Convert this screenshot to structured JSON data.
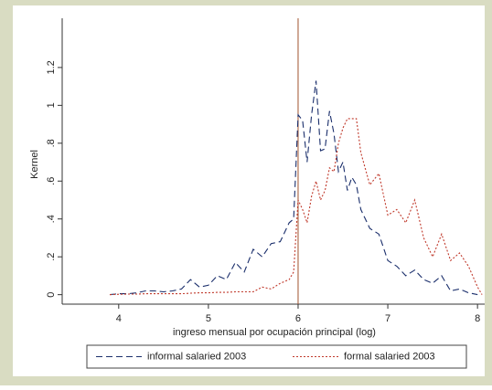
{
  "chart_data": {
    "type": "line",
    "xlabel": "ingreso mensual por ocupación principal (log)",
    "ylabel": "Kernel",
    "x": [
      3.9,
      4.0,
      4.1,
      4.2,
      4.3,
      4.4,
      4.5,
      4.6,
      4.7,
      4.8,
      4.9,
      5.0,
      5.1,
      5.2,
      5.3,
      5.4,
      5.5,
      5.6,
      5.7,
      5.8,
      5.9,
      5.95,
      6.0,
      6.05,
      6.1,
      6.15,
      6.2,
      6.25,
      6.3,
      6.35,
      6.4,
      6.45,
      6.5,
      6.55,
      6.6,
      6.65,
      6.7,
      6.8,
      6.9,
      7.0,
      7.1,
      7.2,
      7.3,
      7.4,
      7.5,
      7.6,
      7.7,
      7.8,
      7.9,
      8.0,
      8.05
    ],
    "series": [
      {
        "name": "informal salaried 2003",
        "color": "#1a2e6b",
        "dash": "dashed",
        "values": [
          0,
          0.005,
          0.005,
          0.01,
          0.02,
          0.02,
          0.015,
          0.02,
          0.03,
          0.08,
          0.04,
          0.05,
          0.1,
          0.08,
          0.17,
          0.12,
          0.24,
          0.2,
          0.27,
          0.28,
          0.38,
          0.4,
          0.95,
          0.92,
          0.7,
          0.95,
          1.13,
          0.76,
          0.77,
          0.97,
          0.85,
          0.65,
          0.7,
          0.55,
          0.62,
          0.58,
          0.45,
          0.35,
          0.32,
          0.18,
          0.15,
          0.1,
          0.13,
          0.08,
          0.06,
          0.1,
          0.02,
          0.03,
          0.01,
          0,
          null
        ]
      },
      {
        "name": "formal salaried 2003",
        "color": "#c0392b",
        "dash": "dotted",
        "values": [
          0,
          0.002,
          0.003,
          0.003,
          0.005,
          0.005,
          0.005,
          0.005,
          0.005,
          0.008,
          0.01,
          0.01,
          0.012,
          0.012,
          0.015,
          0.015,
          0.015,
          0.04,
          0.03,
          0.06,
          0.08,
          0.12,
          0.5,
          0.45,
          0.38,
          0.52,
          0.6,
          0.5,
          0.55,
          0.67,
          0.65,
          0.8,
          0.88,
          0.93,
          0.93,
          0.93,
          0.75,
          0.58,
          0.64,
          0.42,
          0.45,
          0.38,
          0.5,
          0.3,
          0.2,
          0.32,
          0.18,
          0.22,
          0.15,
          0.04,
          0
        ]
      }
    ],
    "xline": 6,
    "xline_color": "#a0522d",
    "xlim": [
      3.37,
      8.08
    ],
    "xticks": [
      4,
      5,
      6,
      7,
      8
    ],
    "ylim": [
      -0.05,
      1.46
    ],
    "yticks": [
      0,
      {
        "value": 0.2,
        "label": ".2"
      },
      {
        "value": 0.4,
        "label": ".4"
      },
      {
        "value": 0.6,
        "label": ".6"
      },
      {
        "value": 0.8,
        "label": ".8"
      },
      1,
      1.2
    ],
    "legend": "bottom"
  }
}
